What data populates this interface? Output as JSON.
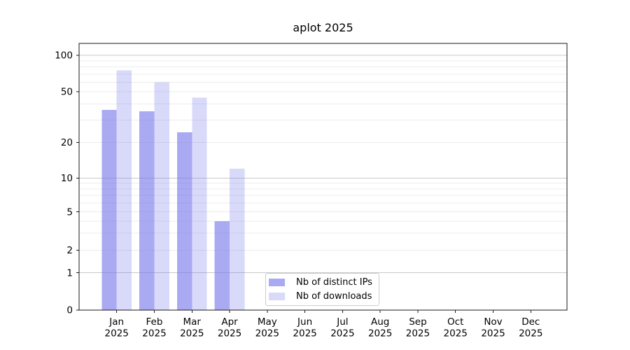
{
  "chart_data": {
    "type": "bar",
    "title": "aplot 2025",
    "categories": [
      "Jan",
      "Feb",
      "Mar",
      "Apr",
      "May",
      "Jun",
      "Jul",
      "Aug",
      "Sep",
      "Oct",
      "Nov",
      "Dec"
    ],
    "year": "2025",
    "series": [
      {
        "name": "Nb of distinct IPs",
        "color": "rgba(120,120,235,0.63)",
        "values": [
          36,
          35,
          24,
          4,
          0,
          0,
          0,
          0,
          0,
          0,
          0,
          0
        ]
      },
      {
        "name": "Nb of downloads",
        "color": "rgba(120,120,235,0.28)",
        "values": [
          75,
          60,
          45,
          12,
          0,
          0,
          0,
          0,
          0,
          0,
          0,
          0
        ]
      }
    ],
    "xlabel": "",
    "ylabel": "",
    "yscale": "log above 1, linear 0-1",
    "yticks": [
      0,
      1,
      2,
      5,
      10,
      20,
      50,
      100
    ],
    "ylim": [
      0,
      126
    ],
    "grid": {
      "major_at": [
        1,
        10,
        100
      ],
      "minor_at": [
        2,
        3,
        4,
        5,
        6,
        7,
        8,
        9,
        20,
        30,
        40,
        50,
        60,
        70,
        80,
        90
      ]
    },
    "legend_position": "inside bottom-center",
    "colors": {
      "bar_ips_rendered": "#a9a9f1",
      "bar_downloads_rendered": "#d9d9f8",
      "major_grid": "#c9c9c9",
      "minor_grid": "#ececec",
      "axis": "#1a1a1a"
    }
  }
}
